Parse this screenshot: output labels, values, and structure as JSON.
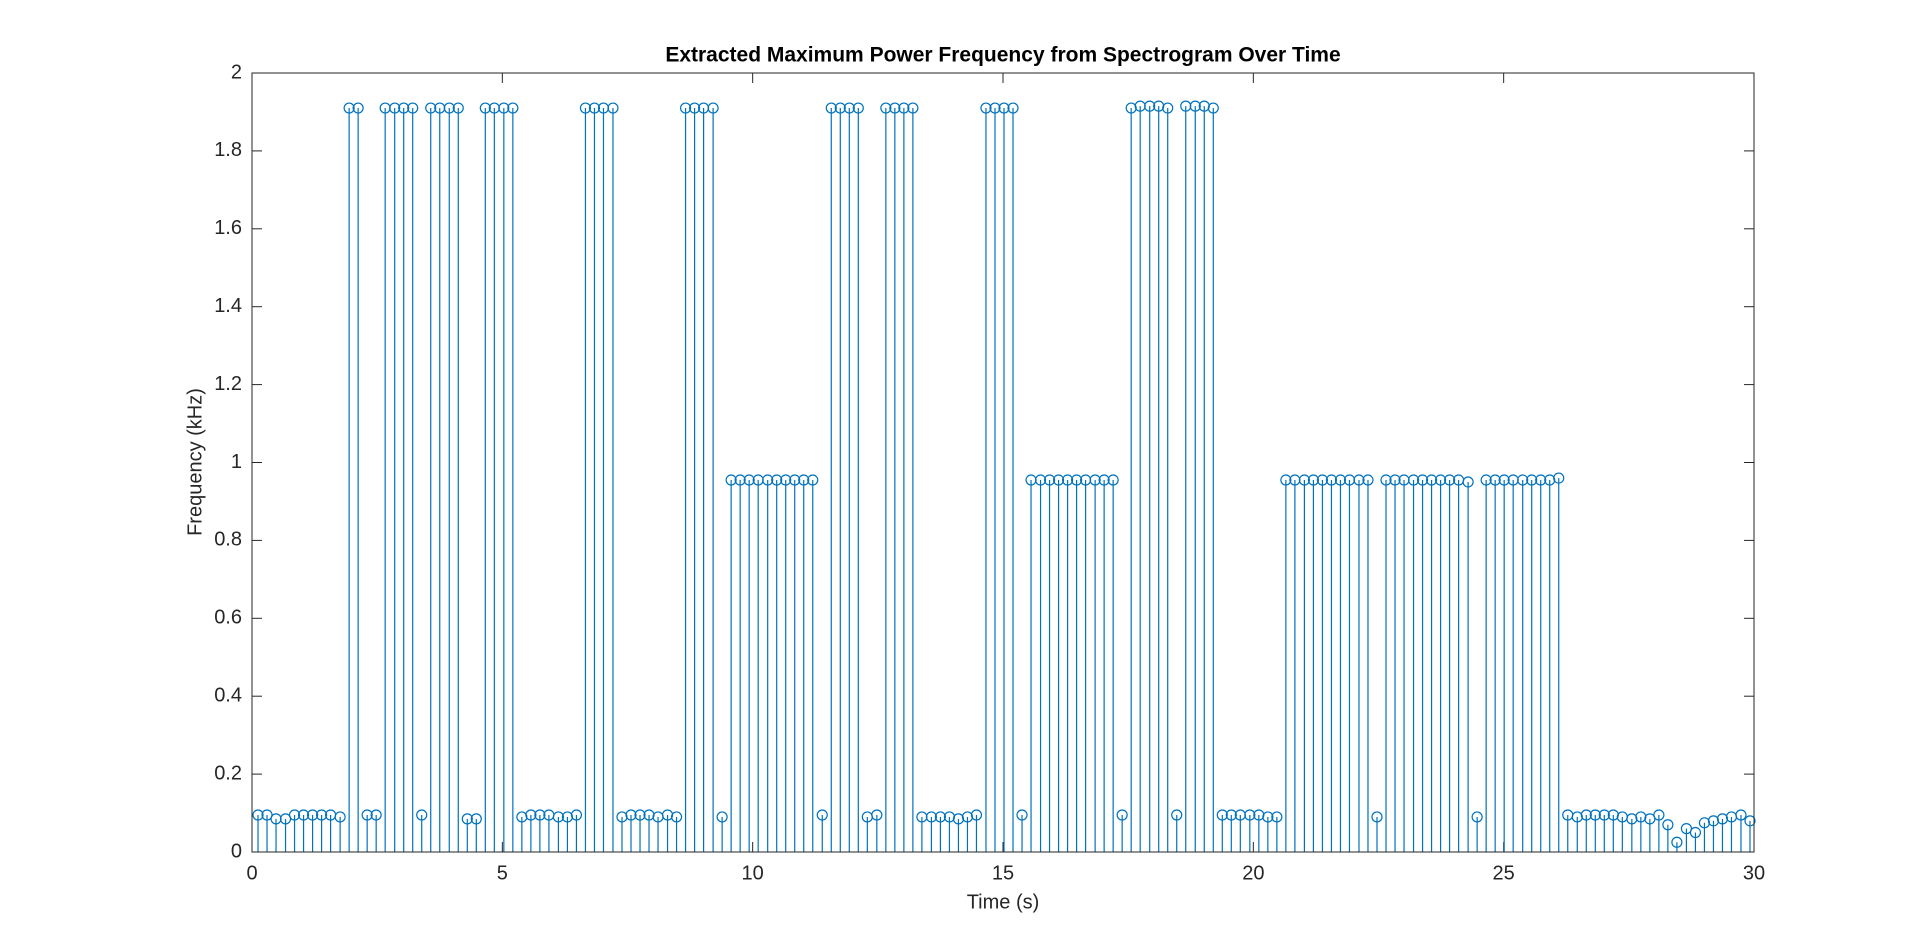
{
  "chart_data": {
    "type": "stem",
    "title": "Extracted Maximum Power Frequency from Spectrogram Over Time",
    "x_label": "Time (s)",
    "y_label": "Frequency (kHz)",
    "color": "#0072bd",
    "xlim": [
      0,
      30
    ],
    "ylim": [
      0,
      2
    ],
    "xticks": [
      0,
      5,
      10,
      15,
      20,
      25,
      30
    ],
    "yticks": [
      0,
      0.2,
      0.4,
      0.6,
      0.8,
      1,
      1.2,
      1.4,
      1.6,
      1.8,
      2
    ],
    "x": [
      0.12,
      0.3,
      0.48,
      0.67,
      0.85,
      1.03,
      1.21,
      1.39,
      1.57,
      1.76,
      1.94,
      2.12,
      2.3,
      2.48,
      2.66,
      2.85,
      3.03,
      3.21,
      3.39,
      3.57,
      3.75,
      3.94,
      4.12,
      4.3,
      4.48,
      4.66,
      4.84,
      5.03,
      5.21,
      5.39,
      5.57,
      5.75,
      5.93,
      6.12,
      6.3,
      6.48,
      6.66,
      6.84,
      7.02,
      7.21,
      7.39,
      7.57,
      7.75,
      7.93,
      8.11,
      8.3,
      8.48,
      8.66,
      8.84,
      9.02,
      9.21,
      9.39,
      9.57,
      9.75,
      9.93,
      10.11,
      10.3,
      10.48,
      10.66,
      10.84,
      11.02,
      11.2,
      11.39,
      11.57,
      11.75,
      11.93,
      12.11,
      12.29,
      12.48,
      12.66,
      12.84,
      13.02,
      13.2,
      13.38,
      13.57,
      13.75,
      13.93,
      14.11,
      14.29,
      14.47,
      14.66,
      14.84,
      15.02,
      15.2,
      15.38,
      15.56,
      15.75,
      15.93,
      16.11,
      16.29,
      16.47,
      16.65,
      16.84,
      17.02,
      17.2,
      17.38,
      17.56,
      17.74,
      17.93,
      18.11,
      18.29,
      18.47,
      18.65,
      18.84,
      19.02,
      19.2,
      19.38,
      19.56,
      19.74,
      19.93,
      20.11,
      20.29,
      20.47,
      20.65,
      20.83,
      21.02,
      21.2,
      21.38,
      21.56,
      21.74,
      21.92,
      22.11,
      22.29,
      22.47,
      22.65,
      22.83,
      23.01,
      23.2,
      23.38,
      23.56,
      23.74,
      23.92,
      24.1,
      24.29,
      24.47,
      24.65,
      24.83,
      25.01,
      25.19,
      25.38,
      25.56,
      25.74,
      25.92,
      26.1,
      26.28,
      26.47,
      26.65,
      26.83,
      27.01,
      27.19,
      27.37,
      27.56,
      27.74,
      27.92,
      28.1,
      28.28,
      28.46,
      28.65,
      28.83,
      29.01,
      29.19,
      29.37,
      29.55,
      29.74,
      29.92
    ],
    "values": [
      0.095,
      0.095,
      0.085,
      0.085,
      0.095,
      0.095,
      0.095,
      0.095,
      0.095,
      0.09,
      1.91,
      1.91,
      0.095,
      0.095,
      1.91,
      1.91,
      1.91,
      1.91,
      0.095,
      1.91,
      1.91,
      1.91,
      1.91,
      0.085,
      0.085,
      1.91,
      1.91,
      1.91,
      1.91,
      0.09,
      0.095,
      0.095,
      0.095,
      0.09,
      0.09,
      0.095,
      1.91,
      1.91,
      1.91,
      1.91,
      0.09,
      0.095,
      0.095,
      0.095,
      0.09,
      0.095,
      0.09,
      1.91,
      1.91,
      1.91,
      1.91,
      0.09,
      0.955,
      0.955,
      0.955,
      0.955,
      0.955,
      0.955,
      0.955,
      0.955,
      0.955,
      0.955,
      0.095,
      1.91,
      1.91,
      1.91,
      1.91,
      0.09,
      0.095,
      1.91,
      1.91,
      1.91,
      1.91,
      0.09,
      0.09,
      0.09,
      0.09,
      0.085,
      0.09,
      0.095,
      1.91,
      1.91,
      1.91,
      1.91,
      0.095,
      0.955,
      0.955,
      0.955,
      0.955,
      0.955,
      0.955,
      0.955,
      0.955,
      0.955,
      0.955,
      0.095,
      1.91,
      1.915,
      1.915,
      1.915,
      1.91,
      0.095,
      1.915,
      1.915,
      1.915,
      1.91,
      0.095,
      0.095,
      0.095,
      0.095,
      0.095,
      0.09,
      0.09,
      0.955,
      0.955,
      0.955,
      0.955,
      0.955,
      0.955,
      0.955,
      0.955,
      0.955,
      0.955,
      0.09,
      0.955,
      0.955,
      0.955,
      0.955,
      0.955,
      0.955,
      0.955,
      0.955,
      0.955,
      0.95,
      0.09,
      0.955,
      0.955,
      0.955,
      0.955,
      0.955,
      0.955,
      0.955,
      0.955,
      0.96,
      0.095,
      0.09,
      0.095,
      0.095,
      0.095,
      0.095,
      0.09,
      0.085,
      0.09,
      0.085,
      0.095,
      0.07,
      0.025,
      0.06,
      0.05,
      0.075,
      0.08,
      0.085,
      0.09,
      0.095,
      0.08
    ]
  }
}
